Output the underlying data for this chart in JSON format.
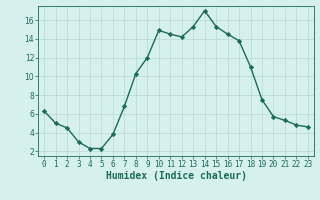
{
  "x": [
    0,
    1,
    2,
    3,
    4,
    5,
    6,
    7,
    8,
    9,
    10,
    11,
    12,
    13,
    14,
    15,
    16,
    17,
    18,
    19,
    20,
    21,
    22,
    23
  ],
  "y": [
    6.3,
    5.0,
    4.5,
    3.0,
    2.3,
    2.3,
    3.8,
    6.8,
    10.3,
    12.0,
    14.9,
    14.5,
    14.2,
    15.3,
    17.0,
    15.3,
    14.5,
    13.8,
    11.0,
    7.5,
    5.7,
    5.3,
    4.8,
    4.6
  ],
  "line_color": "#1a6b5a",
  "marker": "D",
  "marker_size": 2.2,
  "linewidth": 1.0,
  "xlabel": "Humidex (Indice chaleur)",
  "xlim": [
    -0.5,
    23.5
  ],
  "ylim": [
    1.5,
    17.5
  ],
  "yticks": [
    2,
    4,
    6,
    8,
    10,
    12,
    14,
    16
  ],
  "xticks": [
    0,
    1,
    2,
    3,
    4,
    5,
    6,
    7,
    8,
    9,
    10,
    11,
    12,
    13,
    14,
    15,
    16,
    17,
    18,
    19,
    20,
    21,
    22,
    23
  ],
  "background_color": "#d6f0ee",
  "grid_color": "#b8d8d4",
  "tick_fontsize": 5.5,
  "xlabel_fontsize": 7.0
}
